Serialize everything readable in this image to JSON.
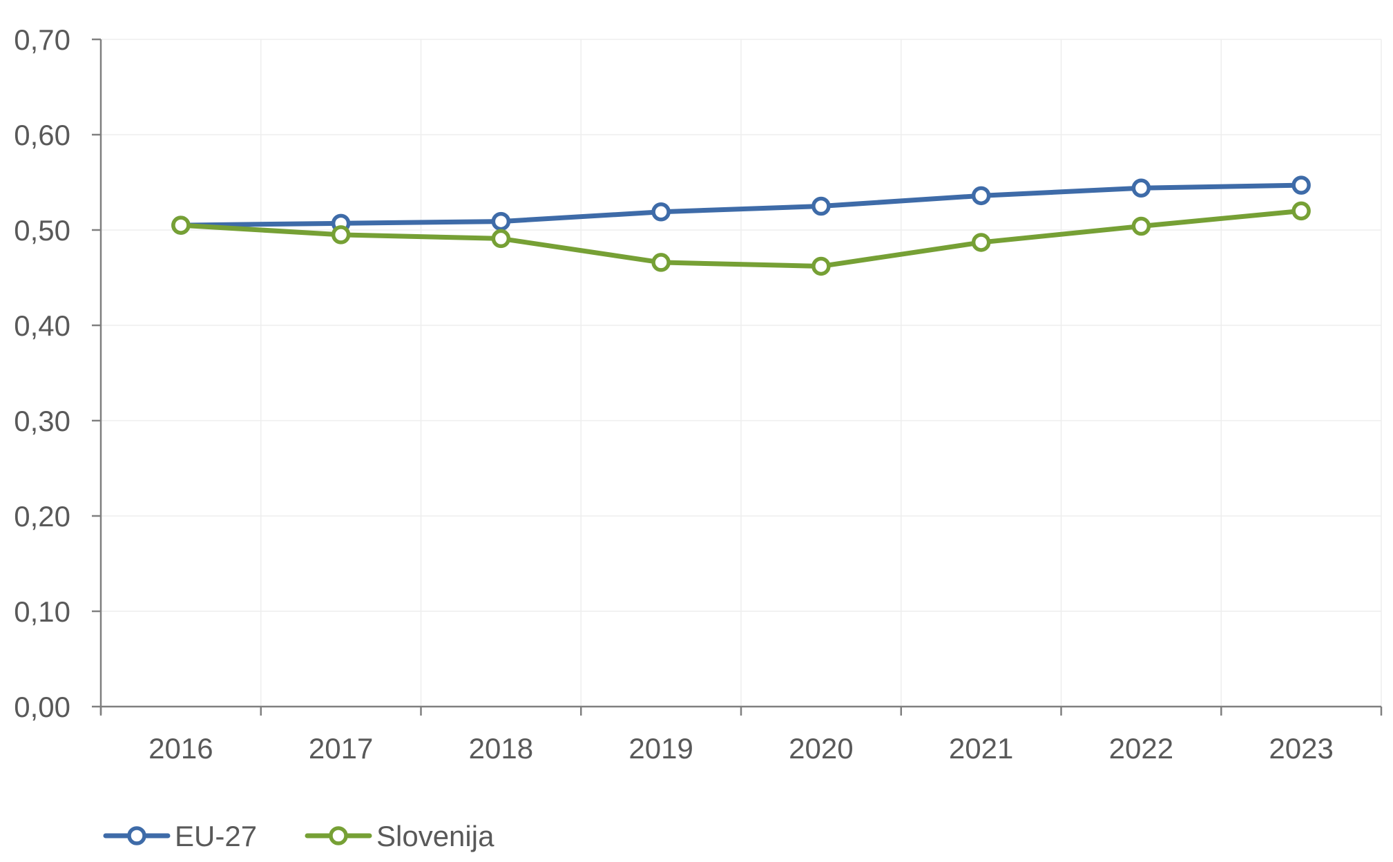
{
  "chart_data": {
    "type": "line",
    "title": "",
    "xlabel": "",
    "ylabel": "",
    "categories": [
      "2016",
      "2017",
      "2018",
      "2019",
      "2020",
      "2021",
      "2022",
      "2023"
    ],
    "ylim": [
      0,
      0.7
    ],
    "yticks": [
      0.0,
      0.1,
      0.2,
      0.3,
      0.4,
      0.5,
      0.6,
      0.7
    ],
    "ytick_labels": [
      "0,00",
      "0,10",
      "0,20",
      "0,30",
      "0,40",
      "0,50",
      "0,60",
      "0,70"
    ],
    "grid": true,
    "legend_position": "bottom-left",
    "series": [
      {
        "name": "EU-27",
        "color": "#3E6BA8",
        "values": [
          0.505,
          0.507,
          0.509,
          0.519,
          0.525,
          0.536,
          0.544,
          0.547
        ]
      },
      {
        "name": "Slovenija",
        "color": "#76A035",
        "values": [
          0.505,
          0.495,
          0.491,
          0.466,
          0.462,
          0.487,
          0.504,
          0.52
        ]
      }
    ]
  }
}
